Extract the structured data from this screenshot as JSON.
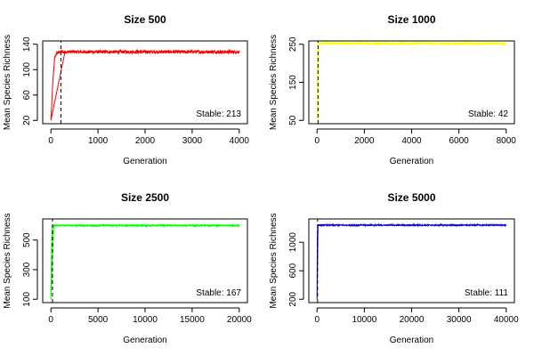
{
  "chart_data": [
    {
      "type": "line",
      "title": "Size 500",
      "xlabel": "Generation",
      "ylabel": "Mean Species Richness",
      "xlim": [
        0,
        4000
      ],
      "ylim": [
        20,
        140
      ],
      "xticks": [
        0,
        1000,
        2000,
        3000,
        4000
      ],
      "yticks": [
        20,
        60,
        100,
        140
      ],
      "series": [
        {
          "color": "#ff0000",
          "x": [
            0,
            40,
            80,
            120,
            200,
            300,
            4000
          ],
          "y": [
            20,
            80,
            118,
            126,
            128,
            128,
            128
          ],
          "noise": 2.5
        }
      ],
      "stable_generation": 213,
      "annotation": "Stable: 213"
    },
    {
      "type": "line",
      "title": "Size 1000",
      "xlabel": "Generation",
      "ylabel": "Mean Species Richness",
      "xlim": [
        0,
        8000
      ],
      "ylim": [
        50,
        250
      ],
      "xticks": [
        0,
        2000,
        4000,
        6000,
        8000
      ],
      "yticks": [
        50,
        150,
        250
      ],
      "series": [
        {
          "color": "#ffff00",
          "x": [
            0,
            15,
            30,
            60,
            8000
          ],
          "y": [
            50,
            200,
            245,
            252,
            252
          ],
          "noise": 3
        }
      ],
      "stable_generation": 42,
      "annotation": "Stable: 42"
    },
    {
      "type": "line",
      "title": "Size 2500",
      "xlabel": "Generation",
      "ylabel": "Mean Species Richness",
      "xlim": [
        0,
        20000
      ],
      "ylim": [
        100,
        620
      ],
      "xticks": [
        0,
        5000,
        10000,
        15000,
        20000
      ],
      "yticks": [
        100,
        300,
        500
      ],
      "series": [
        {
          "color": "#00ff00",
          "x": [
            0,
            80,
            150,
            300,
            20000
          ],
          "y": [
            100,
            500,
            590,
            598,
            598
          ],
          "noise": 5
        }
      ],
      "stable_generation": 167,
      "annotation": "Stable: 167"
    },
    {
      "type": "line",
      "title": "Size 5000",
      "xlabel": "Generation",
      "ylabel": "Mean Species Richness",
      "xlim": [
        0,
        40000
      ],
      "ylim": [
        200,
        1280
      ],
      "xticks": [
        0,
        10000,
        20000,
        30000,
        40000
      ],
      "yticks": [
        200,
        600,
        1000
      ],
      "series": [
        {
          "color": "#0000cc",
          "x": [
            0,
            50,
            110,
            200,
            40000
          ],
          "y": [
            200,
            1000,
            1220,
            1240,
            1240
          ],
          "noise": 8
        }
      ],
      "stable_generation": 111,
      "annotation": "Stable: 111"
    }
  ]
}
